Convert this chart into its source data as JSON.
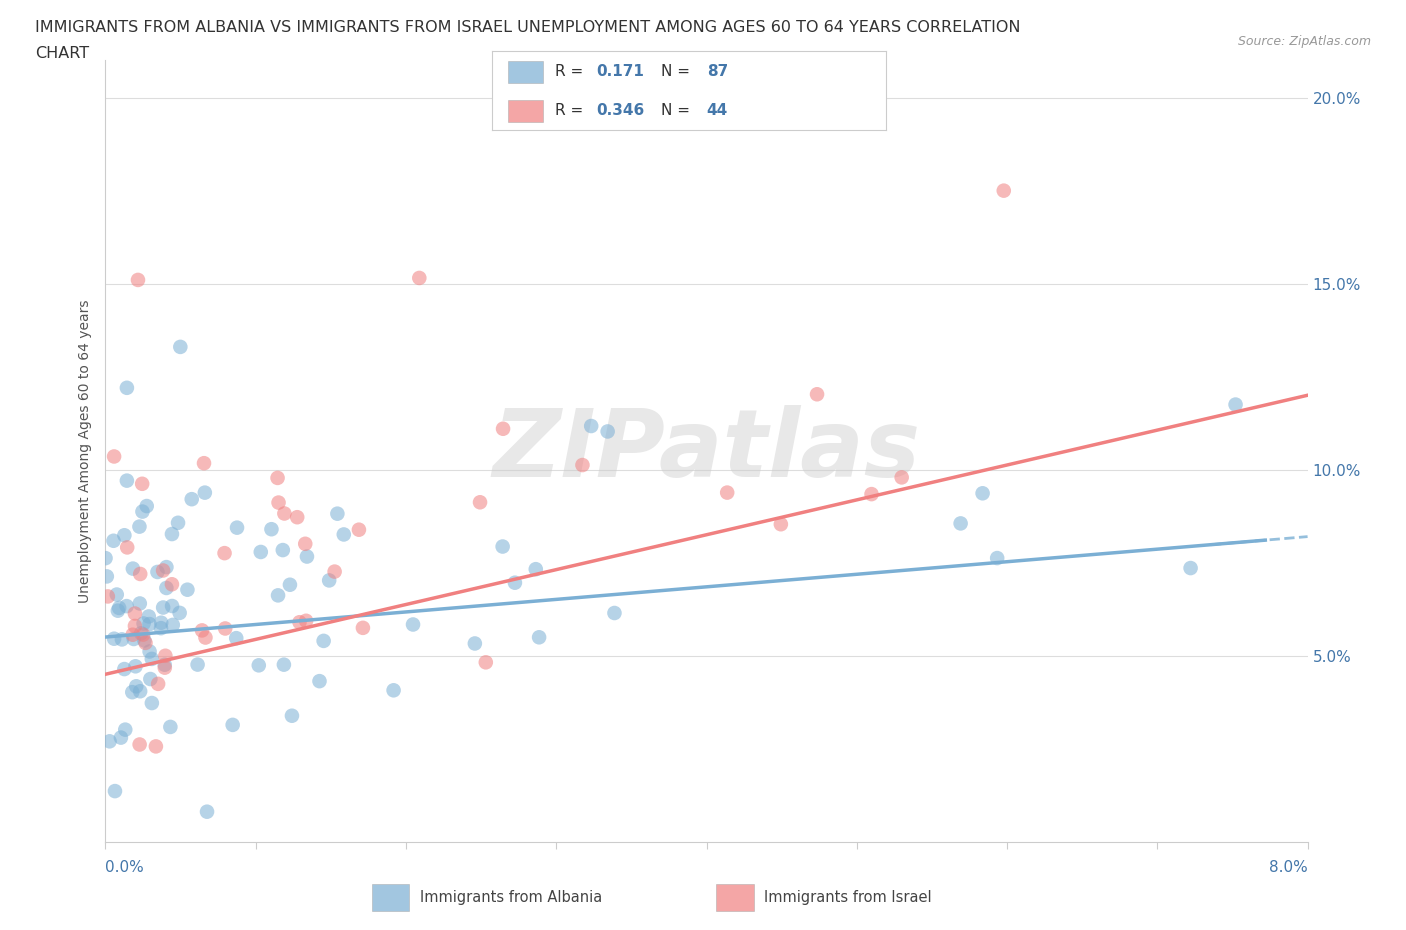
{
  "title_line1": "IMMIGRANTS FROM ALBANIA VS IMMIGRANTS FROM ISRAEL UNEMPLOYMENT AMONG AGES 60 TO 64 YEARS CORRELATION",
  "title_line2": "CHART",
  "source_text": "Source: ZipAtlas.com",
  "ylabel": "Unemployment Among Ages 60 to 64 years",
  "xlim": [
    0.0,
    0.08
  ],
  "ylim": [
    0.0,
    0.21
  ],
  "albania_color": "#7BAFD4",
  "israel_color": "#F08080",
  "albania_R": 0.171,
  "albania_N": 87,
  "israel_R": 0.346,
  "israel_N": 44,
  "watermark_text": "ZIPatlas",
  "yticks": [
    0.05,
    0.1,
    0.15,
    0.2
  ],
  "ytick_labels": [
    "5.0%",
    "10.0%",
    "15.0%",
    "20.0%"
  ],
  "xticks": [
    0.0,
    0.01,
    0.02,
    0.03,
    0.04,
    0.05,
    0.06,
    0.07,
    0.08
  ],
  "title_fontsize": 11.5,
  "axis_label_color": "#4477AA",
  "legend_text_color": "#4477AA",
  "grid_color": "#dddddd"
}
